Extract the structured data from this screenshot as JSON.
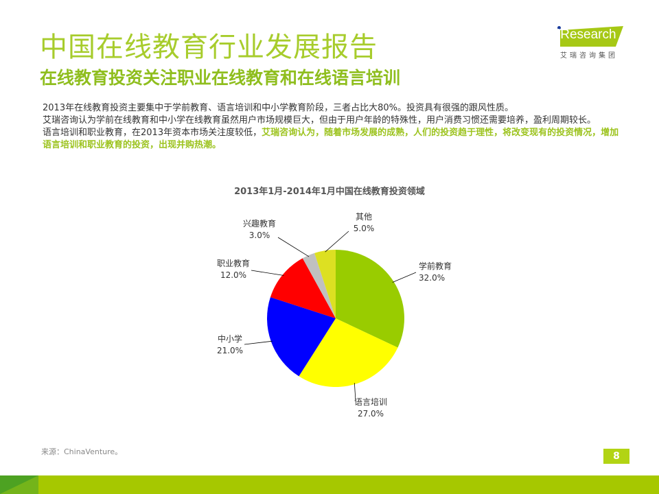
{
  "header": {
    "title": "中国在线教育行业发展报告",
    "subtitle": "在线教育投资关注职业在线教育和在线语言培训"
  },
  "logo": {
    "brand": "iResearch",
    "cn": "艾瑞咨询集团"
  },
  "body": {
    "p1": "2013年在线教育投资主要集中于学前教育、语言培训和中小学教育阶段，三者占比大80%。投资具有很强的跟风性质。",
    "p2": "艾瑞咨询认为学前在线教育和中小学在线教育虽然用户市场规模巨大，但由于用户年龄的特殊性，用户消费习惯还需要培养，盈利周期较长。",
    "p3a": "语言培训和职业教育，在2013年资本市场关注度较低，",
    "p3b": "艾瑞咨询认为，随着市场发展的成熟，人们的投资趋于理性，将改变现有的投资情况，增加语言培训和职业教育的投资，出现并购热潮。"
  },
  "chart_data": {
    "type": "pie",
    "title": "2013年1月-2014年1月中国在线教育投资领域",
    "start": "12 o'clock, clockwise",
    "slices": [
      {
        "label": "学前教育",
        "value": 32.0,
        "text": "32.0%",
        "color": "#99cc00"
      },
      {
        "label": "语言培训",
        "value": 27.0,
        "text": "27.0%",
        "color": "#ffff00"
      },
      {
        "label": "中小学",
        "value": 21.0,
        "text": "21.0%",
        "color": "#0000ff"
      },
      {
        "label": "职业教育",
        "value": 12.0,
        "text": "12.0%",
        "color": "#ff0000"
      },
      {
        "label": "兴趣教育",
        "value": 3.0,
        "text": "3.0%",
        "color": "#c0c0c0"
      },
      {
        "label": "其他",
        "value": 5.0,
        "text": "5.0%",
        "color": "#dde022"
      }
    ]
  },
  "footer": {
    "source": "来源：ChinaVenture。",
    "page": "8"
  }
}
